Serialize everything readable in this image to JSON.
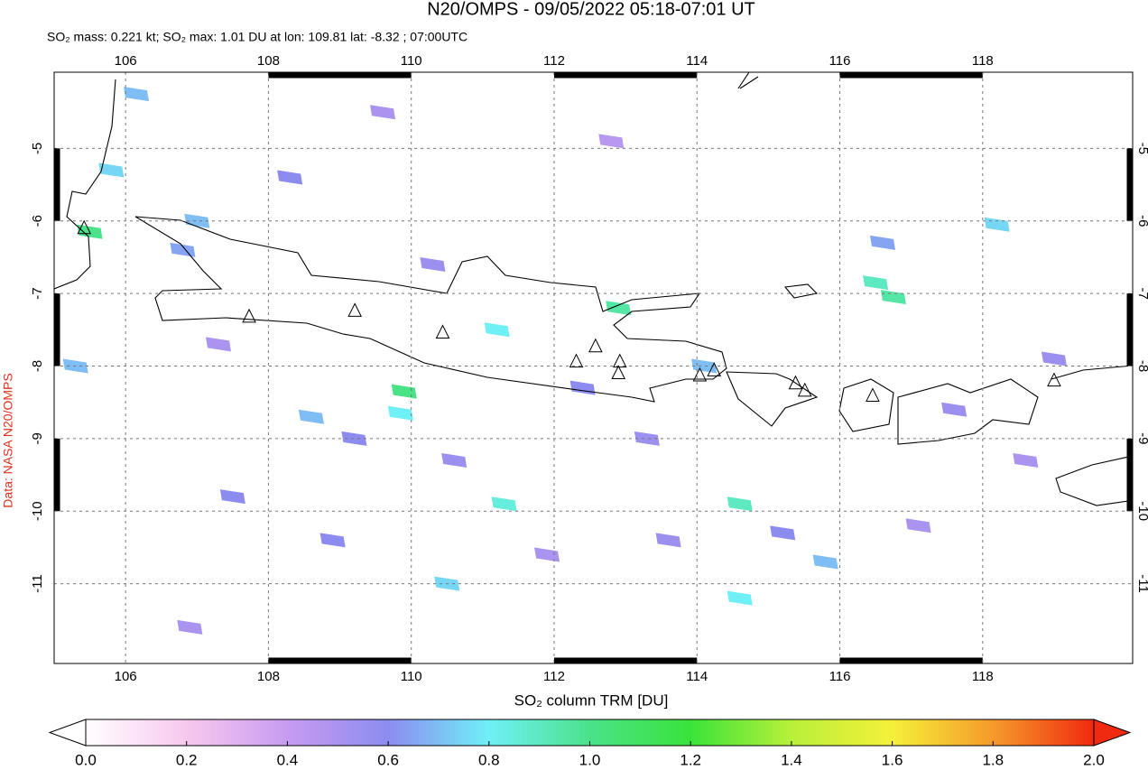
{
  "chart_data": {
    "type": "map",
    "title": "N20/OMPS - 09/05/2022 05:18-07:01 UT",
    "subtitle": "SO₂ mass: 0.221 kt; SO₂ max: 1.01 DU at lon: 109.81 lat: -8.32 ; 07:00UTC",
    "side_label": "Data: NASA N20/OMPS",
    "colorbar_label": "SO₂ column TRM [DU]",
    "xlim": [
      105,
      120.1
    ],
    "ylim": [
      -12.1,
      -3.95
    ],
    "xticks": [
      106,
      108,
      110,
      112,
      114,
      116,
      118
    ],
    "yticks": [
      -5,
      -6,
      -7,
      -8,
      -9,
      -10,
      -11
    ],
    "grid": true,
    "colorbar_lim": [
      0,
      2
    ],
    "colorbar_ticks": [
      {
        "value": 0,
        "label": "0.0"
      },
      {
        "value": 0.2,
        "label": "0.2"
      },
      {
        "value": 0.4,
        "label": "0.4"
      },
      {
        "value": 0.6,
        "label": "0.6"
      },
      {
        "value": 0.8,
        "label": "0.8"
      },
      {
        "value": 1,
        "label": "1.0"
      },
      {
        "value": 1.2,
        "label": "1.2"
      },
      {
        "value": 1.4,
        "label": "1.4"
      },
      {
        "value": 1.6,
        "label": "1.6"
      },
      {
        "value": 1.8,
        "label": "1.8"
      },
      {
        "value": 2,
        "label": "2.0"
      }
    ],
    "colormap": [
      "#ffffff",
      "#f7c8ee",
      "#c79cf0",
      "#8c8cf0",
      "#6ff0f7",
      "#4be28a",
      "#3ae33a",
      "#b8f03a",
      "#f5f03a",
      "#f59a2a",
      "#f02a10"
    ],
    "pixels": {
      "lon": [
        105.5,
        109.9,
        112.9,
        114.6,
        116.5,
        116.75,
        109.85,
        111.2,
        111.3,
        110.5,
        114.6,
        107.0,
        106.15,
        105.8,
        118.2,
        115.8,
        114.1,
        106.8,
        107.5,
        108.6,
        108.3,
        110.3,
        109.2,
        105.3,
        110.6,
        107.3,
        112.4,
        113.3,
        115.2,
        117.1,
        119.0,
        116.6,
        113.6,
        111.9,
        108.9,
        106.9,
        109.6,
        112.8,
        118.6,
        117.6
      ],
      "lat": [
        -6.15,
        -8.35,
        -7.2,
        -9.9,
        -6.85,
        -7.05,
        -8.65,
        -7.5,
        -9.9,
        -11.0,
        -11.2,
        -6.0,
        -4.25,
        -5.3,
        -6.05,
        -10.7,
        -8.0,
        -6.4,
        -9.8,
        -8.7,
        -5.4,
        -6.6,
        -9.0,
        -8.0,
        -9.3,
        -7.7,
        -8.3,
        -9.0,
        -10.3,
        -10.2,
        -7.9,
        -6.3,
        -10.4,
        -10.6,
        -10.4,
        -11.6,
        -4.5,
        -4.9,
        -9.3,
        -8.6
      ],
      "values": [
        1.0,
        1.01,
        0.95,
        0.9,
        0.9,
        0.95,
        0.8,
        0.8,
        0.85,
        0.75,
        0.8,
        0.7,
        0.7,
        0.75,
        0.75,
        0.7,
        0.7,
        0.65,
        0.6,
        0.7,
        0.6,
        0.55,
        0.6,
        0.7,
        0.55,
        0.5,
        0.6,
        0.55,
        0.6,
        0.5,
        0.55,
        0.65,
        0.55,
        0.5,
        0.6,
        0.5,
        0.5,
        0.45,
        0.5,
        0.55
      ]
    },
    "volcanoes": {
      "lon": [
        105.42,
        107.73,
        109.21,
        110.44,
        112.31,
        112.58,
        112.92,
        112.9,
        114.04,
        114.24,
        115.38,
        115.51,
        116.46,
        119.0
      ],
      "lat": [
        -6.1,
        -7.32,
        -7.24,
        -7.54,
        -7.94,
        -7.73,
        -7.94,
        -8.1,
        -8.13,
        -8.06,
        -8.24,
        -8.34,
        -8.41,
        -8.2
      ]
    }
  }
}
